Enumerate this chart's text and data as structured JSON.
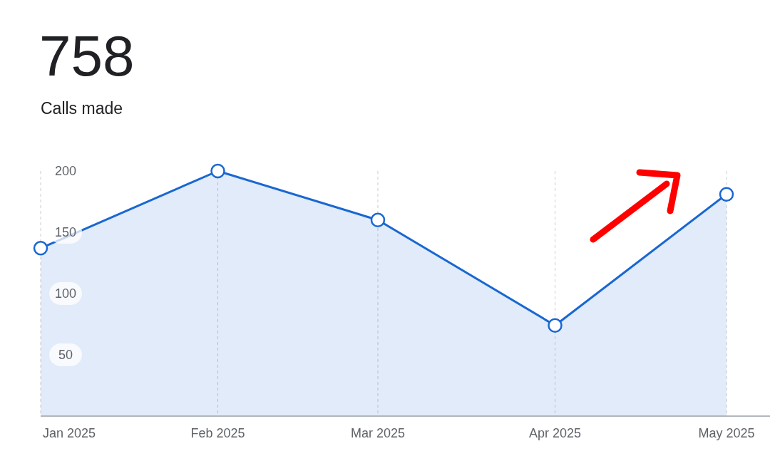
{
  "chart_data": {
    "type": "area",
    "title": "758",
    "subtitle": "Calls made",
    "x": [
      "2025-01",
      "2025-02",
      "2025-03",
      "2025-04",
      "2025-05"
    ],
    "series": [
      {
        "color": "#1967d2",
        "values": [
          137,
          200,
          160,
          74,
          181
        ]
      }
    ],
    "xlim": [
      "2025-01",
      "2025-05"
    ],
    "xticks": [
      {
        "value": "2025-01",
        "label": "Jan 2025"
      },
      {
        "value": "2025-02",
        "label": "Feb 2025"
      },
      {
        "value": "2025-03",
        "label": "Mar 2025"
      },
      {
        "value": "2025-04",
        "label": "Apr 2025"
      },
      {
        "value": "2025-05",
        "label": "May 2025"
      }
    ],
    "ylim": [
      0,
      200
    ],
    "yticks": [
      50,
      100,
      150,
      200
    ],
    "grid": "x",
    "marker": "circle"
  }
}
